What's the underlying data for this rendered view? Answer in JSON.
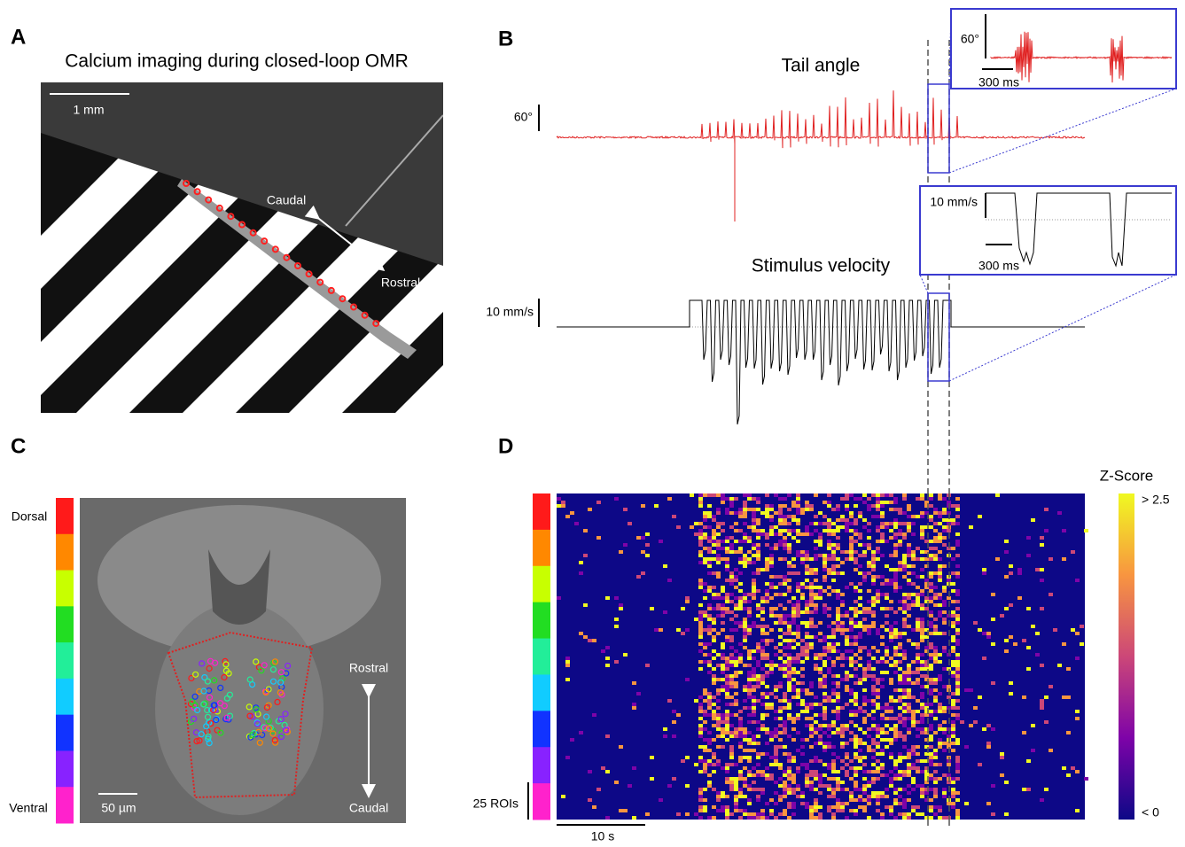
{
  "panels": {
    "a": {
      "label": "A",
      "title": "Calcium imaging during closed-loop OMR",
      "scale_bar": "1 mm",
      "axis_labels": [
        "Caudal",
        "Rostral"
      ]
    },
    "b": {
      "label": "B",
      "tail_title": "Tail angle",
      "tail_scale": "60°",
      "inset_tail_scale": "60°",
      "inset_tail_time": "300 ms",
      "stim_title": "Stimulus velocity",
      "stim_scale": "10 mm/s",
      "inset_stim_scale": "10 mm/s",
      "inset_stim_time": "300 ms"
    },
    "c": {
      "label": "C",
      "depth_labels": [
        "Dorsal",
        "Ventral"
      ],
      "scale_bar": "50 µm",
      "axis_labels": [
        "Rostral",
        "Caudal"
      ]
    },
    "d": {
      "label": "D",
      "colorbar_title": "Z-Score",
      "colorbar_ticks": [
        "> 2.5",
        "< 0"
      ],
      "roi_scale": "25 ROIs",
      "time_scale": "10 s"
    }
  }
}
